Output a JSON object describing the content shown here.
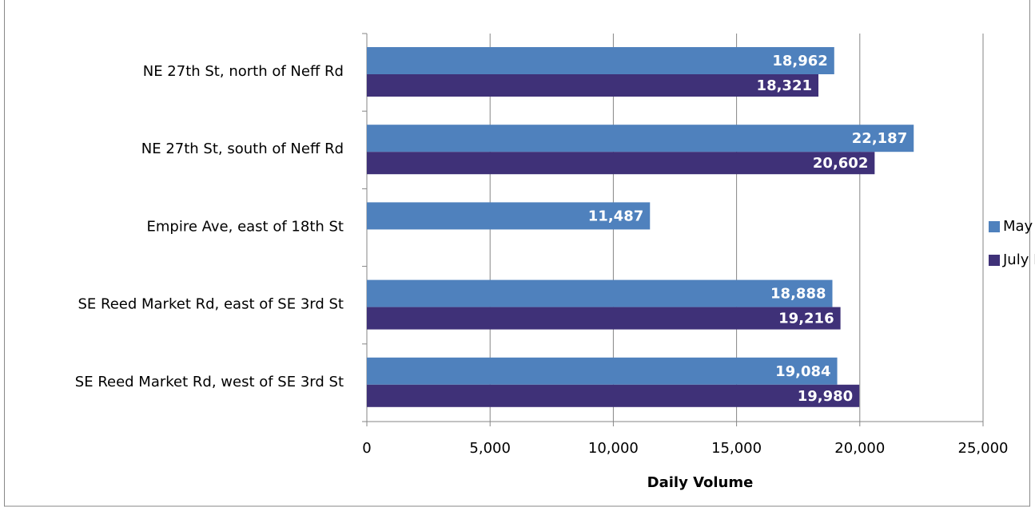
{
  "chart_data": {
    "type": "bar",
    "orientation": "horizontal",
    "categories": [
      "NE 27th St, north of Neff Rd",
      "NE 27th St, south of Neff Rd",
      "Empire Ave, east of 18th St",
      "SE Reed Market Rd, east of SE 3rd St",
      "SE Reed Market Rd, west of SE 3rd St"
    ],
    "series": [
      {
        "name": "May Data",
        "color": "#4f81bd",
        "values": [
          18962,
          22187,
          11487,
          18888,
          19084
        ],
        "value_labels": [
          "18,962",
          "22,187",
          "11,487",
          "18,888",
          "19,084"
        ]
      },
      {
        "name": "July Data",
        "color": "#3f3178",
        "values": [
          18321,
          20602,
          null,
          19216,
          19980
        ],
        "value_labels": [
          "18,321",
          "20,602",
          null,
          "19,216",
          "19,980"
        ]
      }
    ],
    "x_label": "Daily Volume",
    "xlim": [
      0,
      25000
    ],
    "xticks": [
      0,
      {
        "value": 5000,
        "label": "5,000"
      },
      {
        "value": 10000,
        "label": "10,000"
      },
      {
        "value": 15000,
        "label": "15,000"
      },
      {
        "value": 20000,
        "label": "20,000"
      },
      {
        "value": 25000,
        "label": "25,000"
      }
    ],
    "grid": true,
    "legend": "right"
  }
}
